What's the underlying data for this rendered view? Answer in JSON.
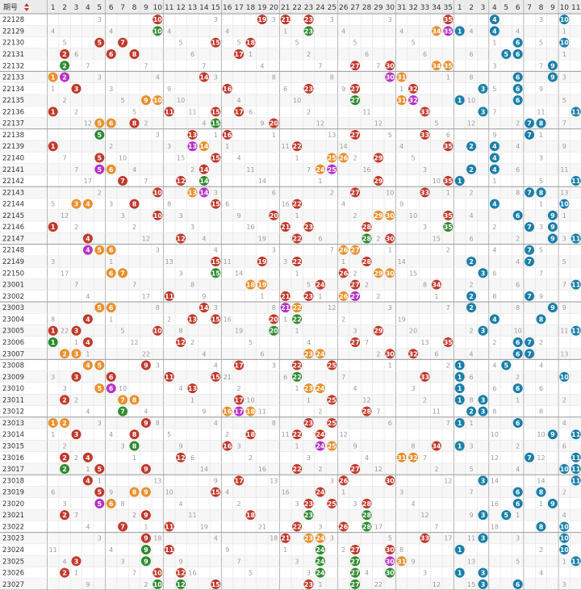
{
  "header_label": "期号",
  "front_numbers": [
    "1",
    "2",
    "3",
    "4",
    "5",
    "6",
    "7",
    "8",
    "9",
    "10",
    "11",
    "12",
    "13",
    "14",
    "15",
    "16",
    "17",
    "18",
    "19",
    "20",
    "21",
    "22",
    "23",
    "24",
    "25",
    "26",
    "27",
    "28",
    "29",
    "30",
    "31",
    "32",
    "33",
    "34",
    "35"
  ],
  "back_numbers": [
    "1",
    "2",
    "3",
    "4",
    "5",
    "6",
    "7",
    "8",
    "9",
    "10",
    "11",
    "12"
  ],
  "colors": {
    "front": "#c0392b",
    "orange": "#e8902f",
    "green": "#2e8b30",
    "purple": "#b531c6",
    "back": "#1a7fa8",
    "missing_text": "#9a9a9a"
  },
  "chart_data": {
    "type": "table",
    "draws": [
      {
        "period": "22128",
        "front": [
          10,
          19,
          21,
          23,
          35
        ],
        "back": [
          4,
          10
        ]
      },
      {
        "period": "22129",
        "front": [
          10,
          23,
          34,
          35
        ],
        "back": [
          1,
          4
        ]
      },
      {
        "period": "22130",
        "front": [
          5,
          7,
          15,
          18
        ],
        "back": [
          6,
          10
        ]
      },
      {
        "period": "22131",
        "front": [
          2,
          6,
          8,
          17
        ],
        "back": [
          5,
          6
        ]
      },
      {
        "period": "22132",
        "front": [
          2,
          27,
          30,
          34,
          35
        ],
        "back": [
          9,
          12
        ]
      },
      {
        "period": "22133",
        "front": [
          1,
          2,
          14,
          30,
          31
        ],
        "back": [
          6,
          9
        ]
      },
      {
        "period": "22134",
        "front": [
          3,
          16,
          23,
          27,
          32
        ],
        "back": [
          3,
          6
        ]
      },
      {
        "period": "22135",
        "front": [
          9,
          10,
          27,
          31,
          32
        ],
        "back": [
          1,
          6
        ]
      },
      {
        "period": "22136",
        "front": [
          1,
          11,
          15,
          17,
          33
        ],
        "back": [
          3,
          11
        ]
      },
      {
        "period": "22137",
        "front": [
          5,
          6,
          8,
          15,
          20
        ],
        "back": [
          7,
          8
        ]
      },
      {
        "period": "22138",
        "front": [
          5,
          13,
          16,
          27,
          33
        ],
        "back": [
          7,
          12
        ]
      },
      {
        "period": "22139",
        "front": [
          1,
          13,
          14,
          22,
          35
        ],
        "back": [
          2,
          4
        ]
      },
      {
        "period": "22140",
        "front": [
          5,
          15,
          25,
          26,
          29
        ],
        "back": [
          4,
          12
        ]
      },
      {
        "period": "22141",
        "front": [
          5,
          6,
          14,
          24,
          25
        ],
        "back": [
          2,
          4
        ]
      },
      {
        "period": "22142",
        "front": [
          7,
          12,
          14,
          29,
          35
        ],
        "back": [
          1,
          11
        ]
      },
      {
        "period": "22143",
        "front": [
          10,
          13,
          14,
          27,
          33
        ],
        "back": [
          7,
          8
        ]
      },
      {
        "period": "22144",
        "front": [
          3,
          4,
          8,
          15,
          22
        ],
        "back": [
          4,
          10
        ]
      },
      {
        "period": "22145",
        "front": [
          10,
          20,
          29,
          30,
          35
        ],
        "back": [
          6,
          9
        ]
      },
      {
        "period": "22146",
        "front": [
          1,
          21,
          23,
          28,
          35
        ],
        "back": [
          7,
          9
        ]
      },
      {
        "period": "22147",
        "front": [
          4,
          12,
          22,
          28,
          30
        ],
        "back": [
          9,
          11
        ]
      },
      {
        "period": "22148",
        "front": [
          4,
          5,
          6,
          26,
          27
        ],
        "back": [
          7,
          12
        ]
      },
      {
        "period": "22149",
        "front": [
          15,
          19,
          22,
          28
        ],
        "back": [
          2,
          7
        ]
      },
      {
        "period": "22150",
        "front": [
          6,
          7,
          15,
          26,
          29,
          30
        ],
        "back": [
          3,
          12
        ]
      },
      {
        "period": "23001",
        "front": [
          18,
          19,
          24,
          27,
          34
        ],
        "back": [
          11,
          12
        ]
      },
      {
        "period": "23002",
        "front": [
          11,
          21,
          23,
          26,
          27
        ],
        "back": [
          2,
          7
        ]
      },
      {
        "period": "23003",
        "front": [
          5,
          6,
          14,
          21,
          22
        ],
        "back": [
          2,
          9
        ]
      },
      {
        "period": "23004",
        "front": [
          4,
          13,
          15,
          20,
          22
        ],
        "back": [
          4,
          8
        ]
      },
      {
        "period": "23005",
        "front": [
          1,
          3,
          10,
          20,
          29
        ],
        "back": [
          3,
          11
        ]
      },
      {
        "period": "23006",
        "front": [
          1,
          4,
          12,
          27,
          35
        ],
        "back": [
          6,
          7
        ]
      },
      {
        "period": "23007",
        "front": [
          2,
          3,
          23,
          24,
          30,
          32
        ],
        "back": [
          6,
          7
        ]
      },
      {
        "period": "23008",
        "front": [
          4,
          5,
          9,
          17,
          22,
          25
        ],
        "back": [
          1,
          5
        ]
      },
      {
        "period": "23009",
        "front": [
          3,
          6,
          11,
          15,
          22,
          33
        ],
        "back": [
          1,
          10
        ]
      },
      {
        "period": "23010",
        "front": [
          5,
          6,
          13,
          23,
          24
        ],
        "back": [
          1,
          6
        ]
      },
      {
        "period": "23011",
        "front": [
          2,
          7,
          8,
          17,
          25
        ],
        "back": [
          1,
          3
        ]
      },
      {
        "period": "23012",
        "front": [
          7,
          16,
          17,
          18,
          28
        ],
        "back": [
          2,
          3
        ]
      },
      {
        "period": "23013",
        "front": [
          1,
          2,
          9,
          23,
          25
        ],
        "back": [
          1,
          6
        ]
      },
      {
        "period": "23014",
        "front": [
          3,
          8,
          18,
          22,
          24
        ],
        "back": [
          9,
          11
        ]
      },
      {
        "period": "23015",
        "front": [
          8,
          16,
          24,
          25,
          34
        ],
        "back": [
          1,
          12
        ]
      },
      {
        "period": "23016",
        "front": [
          2,
          4,
          12,
          31,
          32
        ],
        "back": [
          7,
          11
        ]
      },
      {
        "period": "23017",
        "front": [
          2,
          5,
          9,
          22,
          27
        ],
        "back": [
          10,
          11
        ]
      },
      {
        "period": "23018",
        "front": [
          4,
          17,
          26,
          30
        ],
        "back": [
          3,
          11
        ]
      },
      {
        "period": "23019",
        "front": [
          5,
          8,
          9,
          15,
          24
        ],
        "back": [
          6,
          8
        ]
      },
      {
        "period": "23020",
        "front": [
          5,
          6,
          23,
          25,
          28
        ],
        "back": [
          6,
          9
        ]
      },
      {
        "period": "23021",
        "front": [
          2,
          9,
          18,
          23,
          28
        ],
        "back": [
          3,
          5
        ]
      },
      {
        "period": "23022",
        "front": [
          7,
          11,
          22,
          26,
          28
        ],
        "back": [
          8,
          10
        ]
      },
      {
        "period": "23023",
        "front": [
          9,
          21,
          23,
          24,
          33
        ],
        "back": [
          3,
          10
        ]
      },
      {
        "period": "23024",
        "front": [
          9,
          11,
          24,
          27,
          30
        ],
        "back": [
          1,
          10
        ]
      },
      {
        "period": "23025",
        "front": [
          3,
          9,
          24,
          27,
          30,
          31
        ],
        "back": [
          11,
          12
        ]
      },
      {
        "period": "23026",
        "front": [
          2,
          10,
          12,
          24,
          27,
          30
        ],
        "back": [
          1,
          3
        ]
      },
      {
        "period": "23027",
        "front": [
          10,
          12,
          15,
          23,
          27
        ],
        "back": [
          3,
          6
        ]
      }
    ]
  }
}
